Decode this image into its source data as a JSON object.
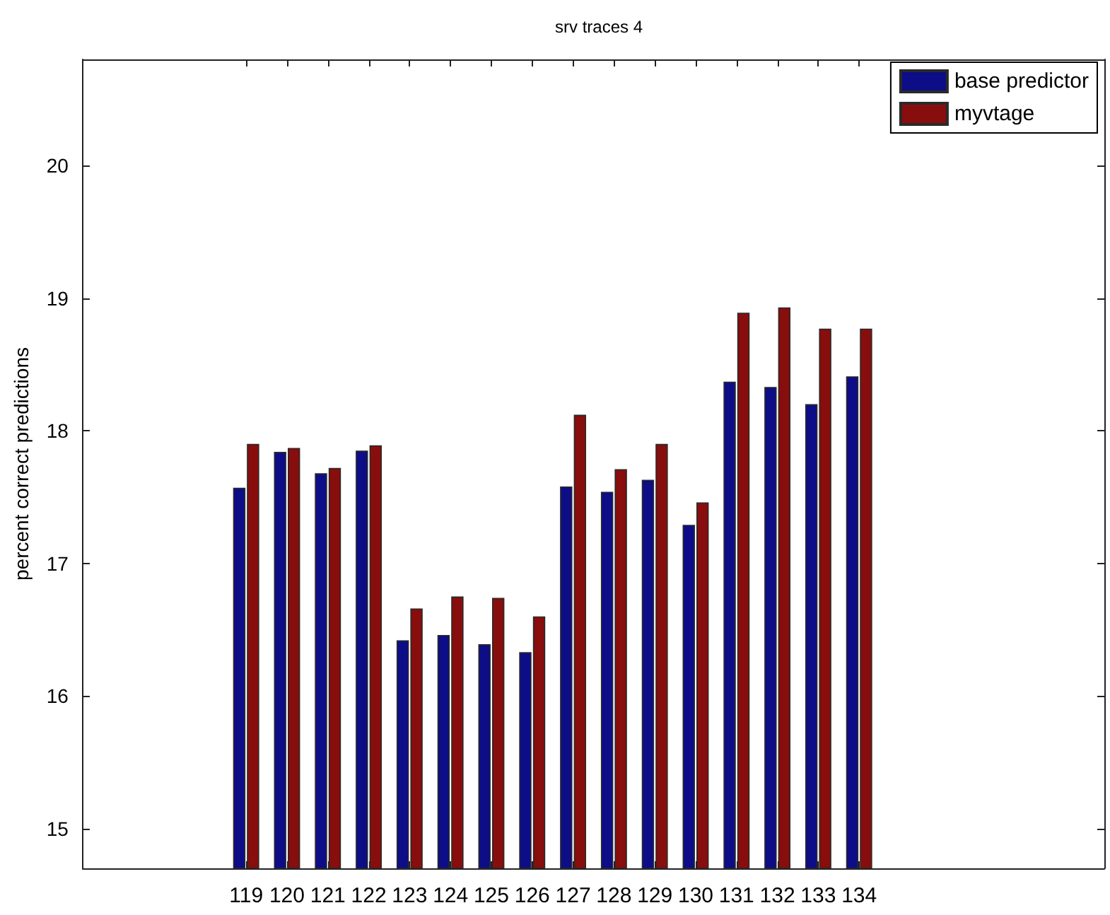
{
  "chart_data": {
    "type": "bar",
    "title": "srv traces 4",
    "ylabel": "percent correct predictions",
    "x": [
      119,
      120,
      121,
      122,
      123,
      124,
      125,
      126,
      127,
      128,
      129,
      130,
      131,
      132,
      133,
      134
    ],
    "xlim": [
      115,
      140
    ],
    "xticks": [
      119,
      120,
      121,
      122,
      123,
      124,
      125,
      126,
      127,
      128,
      129,
      130,
      131,
      132,
      133,
      134
    ],
    "ylim": [
      14.7,
      20.8
    ],
    "yticks": [
      15,
      16,
      17,
      18,
      19,
      20
    ],
    "series": [
      {
        "name": "base predictor",
        "color": "#0d0d88",
        "values": [
          17.57,
          17.84,
          17.68,
          17.85,
          16.42,
          16.46,
          16.39,
          16.33,
          17.58,
          17.54,
          17.63,
          17.29,
          18.37,
          18.33,
          18.2,
          18.41
        ]
      },
      {
        "name": "myvtage",
        "color": "#880d0d",
        "values": [
          17.9,
          17.87,
          17.72,
          17.89,
          16.66,
          16.75,
          16.74,
          16.6,
          18.12,
          17.71,
          17.9,
          17.46,
          18.89,
          18.93,
          18.77,
          18.77
        ]
      }
    ],
    "legend": "top right",
    "grid": false
  }
}
